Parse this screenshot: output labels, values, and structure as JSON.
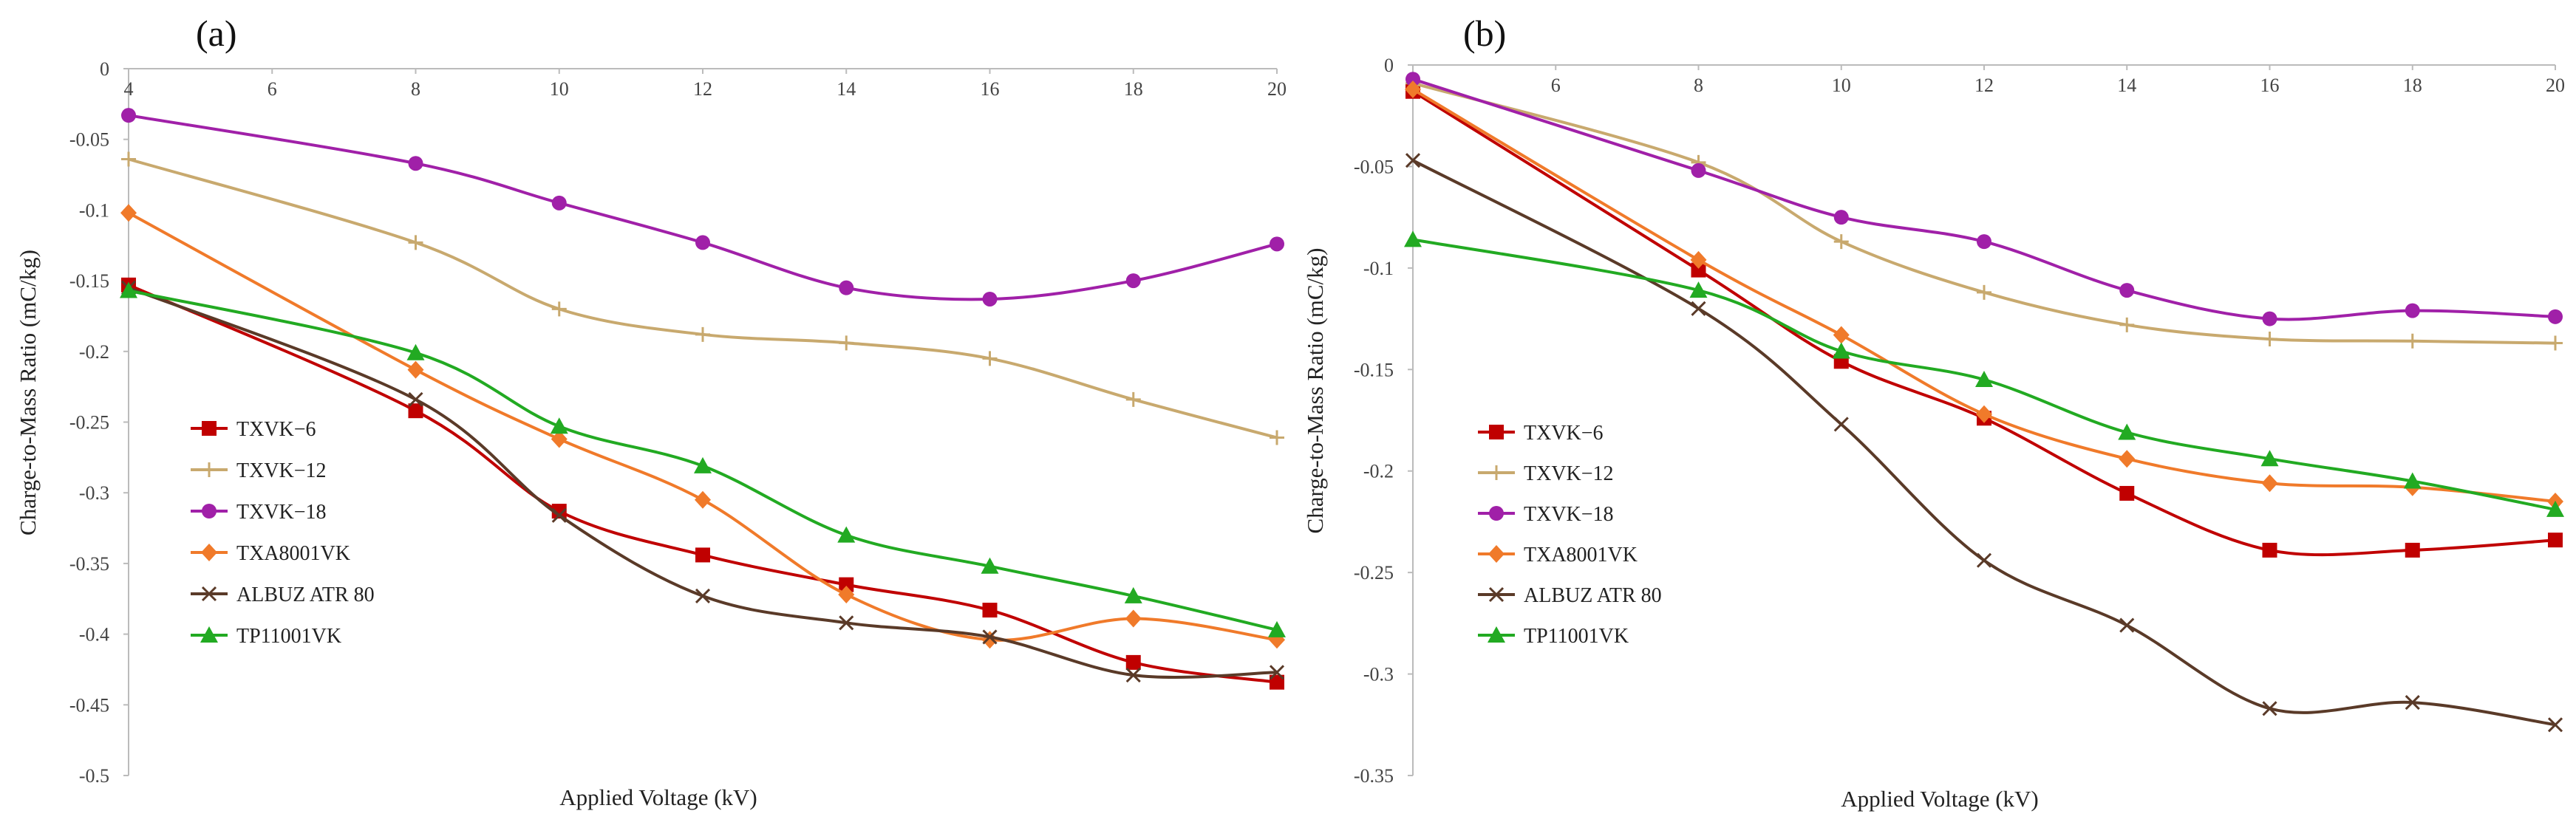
{
  "figure": {
    "panels": [
      "(a)",
      "(b)"
    ]
  },
  "chart_data": [
    {
      "type": "line",
      "panel_label": "(a)",
      "title": "",
      "xlabel": "Applied Voltage (kV)",
      "ylabel": "Charge-to-Mass Ratio (mC/kg)",
      "xlim": [
        4,
        20
      ],
      "ylim": [
        -0.5,
        0
      ],
      "x_ticks": [
        4,
        6,
        8,
        10,
        12,
        14,
        16,
        18,
        20
      ],
      "x_tick_labels": [
        "4",
        "6",
        "8",
        "10",
        "12",
        "14",
        "16",
        "18",
        "20"
      ],
      "y_ticks": [
        0,
        -0.05,
        -0.1,
        -0.15,
        -0.2,
        -0.25,
        -0.3,
        -0.35,
        -0.4,
        -0.45,
        -0.5
      ],
      "y_tick_labels": [
        "0",
        "-0.05",
        "-0.1",
        "-0.15",
        "-0.2",
        "-0.25",
        "-0.3",
        "-0.35",
        "-0.4",
        "-0.45",
        "-0.5"
      ],
      "x": [
        4,
        8,
        10,
        12,
        14,
        16,
        18,
        20
      ],
      "grid": false,
      "legend": "middle-left",
      "series": [
        {
          "name": "TXVK−6",
          "color": "#c00000",
          "marker": "square",
          "values": [
            -0.153,
            -0.242,
            -0.313,
            -0.344,
            -0.365,
            -0.383,
            -0.42,
            -0.434
          ]
        },
        {
          "name": "TXVK−12",
          "color": "#c8a96e",
          "marker": "plus",
          "values": [
            -0.064,
            -0.123,
            -0.17,
            -0.188,
            -0.194,
            -0.205,
            -0.234,
            -0.261
          ]
        },
        {
          "name": "TXVK−18",
          "color": "#a020a8",
          "marker": "circle",
          "values": [
            -0.033,
            -0.067,
            -0.095,
            -0.123,
            -0.155,
            -0.163,
            -0.15,
            -0.124
          ]
        },
        {
          "name": "TXA8001VK",
          "color": "#f07a2a",
          "marker": "diamond",
          "values": [
            -0.102,
            -0.213,
            -0.262,
            -0.305,
            -0.372,
            -0.404,
            -0.389,
            -0.404
          ]
        },
        {
          "name": "ALBUZ ATR 80",
          "color": "#5a3a28",
          "marker": "cross",
          "values": [
            -0.155,
            -0.234,
            -0.316,
            -0.373,
            -0.392,
            -0.402,
            -0.429,
            -0.427
          ]
        },
        {
          "name": "TP11001VK",
          "color": "#22aa22",
          "marker": "triangle",
          "values": [
            -0.157,
            -0.201,
            -0.253,
            -0.281,
            -0.33,
            -0.352,
            -0.373,
            -0.397
          ]
        }
      ]
    },
    {
      "type": "line",
      "panel_label": "(b)",
      "title": "",
      "xlabel": "Applied Voltage (kV)",
      "ylabel": "Charge-to-Mass Ratio (mC/kg)",
      "xlim": [
        4,
        20
      ],
      "ylim": [
        -0.35,
        0
      ],
      "x_ticks": [
        4,
        6,
        8,
        10,
        12,
        14,
        16,
        18,
        20
      ],
      "x_tick_labels": [
        "4",
        "6",
        "8",
        "10",
        "12",
        "14",
        "16",
        "18",
        "20"
      ],
      "y_ticks": [
        0,
        -0.05,
        -0.1,
        -0.15,
        -0.2,
        -0.25,
        -0.3,
        -0.35
      ],
      "y_tick_labels": [
        "0",
        "-0.05",
        "-0.1",
        "-0.15",
        "-0.2",
        "-0.25",
        "-0.3",
        "-0.35"
      ],
      "x": [
        4,
        8,
        10,
        12,
        14,
        16,
        18,
        20
      ],
      "grid": false,
      "legend": "middle-left",
      "series": [
        {
          "name": "TXVK−6",
          "color": "#c00000",
          "marker": "square",
          "values": [
            -0.013,
            -0.101,
            -0.146,
            -0.174,
            -0.211,
            -0.239,
            -0.239,
            -0.234
          ]
        },
        {
          "name": "TXVK−12",
          "color": "#c8a96e",
          "marker": "plus",
          "values": [
            -0.009,
            -0.048,
            -0.087,
            -0.112,
            -0.128,
            -0.135,
            -0.136,
            -0.137
          ]
        },
        {
          "name": "TXVK−18",
          "color": "#a020a8",
          "marker": "circle",
          "values": [
            -0.007,
            -0.052,
            -0.075,
            -0.087,
            -0.111,
            -0.125,
            -0.121,
            -0.124
          ]
        },
        {
          "name": "TXA8001VK",
          "color": "#f07a2a",
          "marker": "diamond",
          "values": [
            -0.012,
            -0.096,
            -0.133,
            -0.172,
            -0.194,
            -0.206,
            -0.208,
            -0.215
          ]
        },
        {
          "name": "ALBUZ ATR 80",
          "color": "#5a3a28",
          "marker": "cross",
          "values": [
            -0.047,
            -0.12,
            -0.177,
            -0.244,
            -0.276,
            -0.317,
            -0.314,
            -0.325
          ]
        },
        {
          "name": "TP11001VK",
          "color": "#22aa22",
          "marker": "triangle",
          "values": [
            -0.086,
            -0.111,
            -0.141,
            -0.155,
            -0.181,
            -0.194,
            -0.205,
            -0.219
          ]
        }
      ]
    }
  ]
}
